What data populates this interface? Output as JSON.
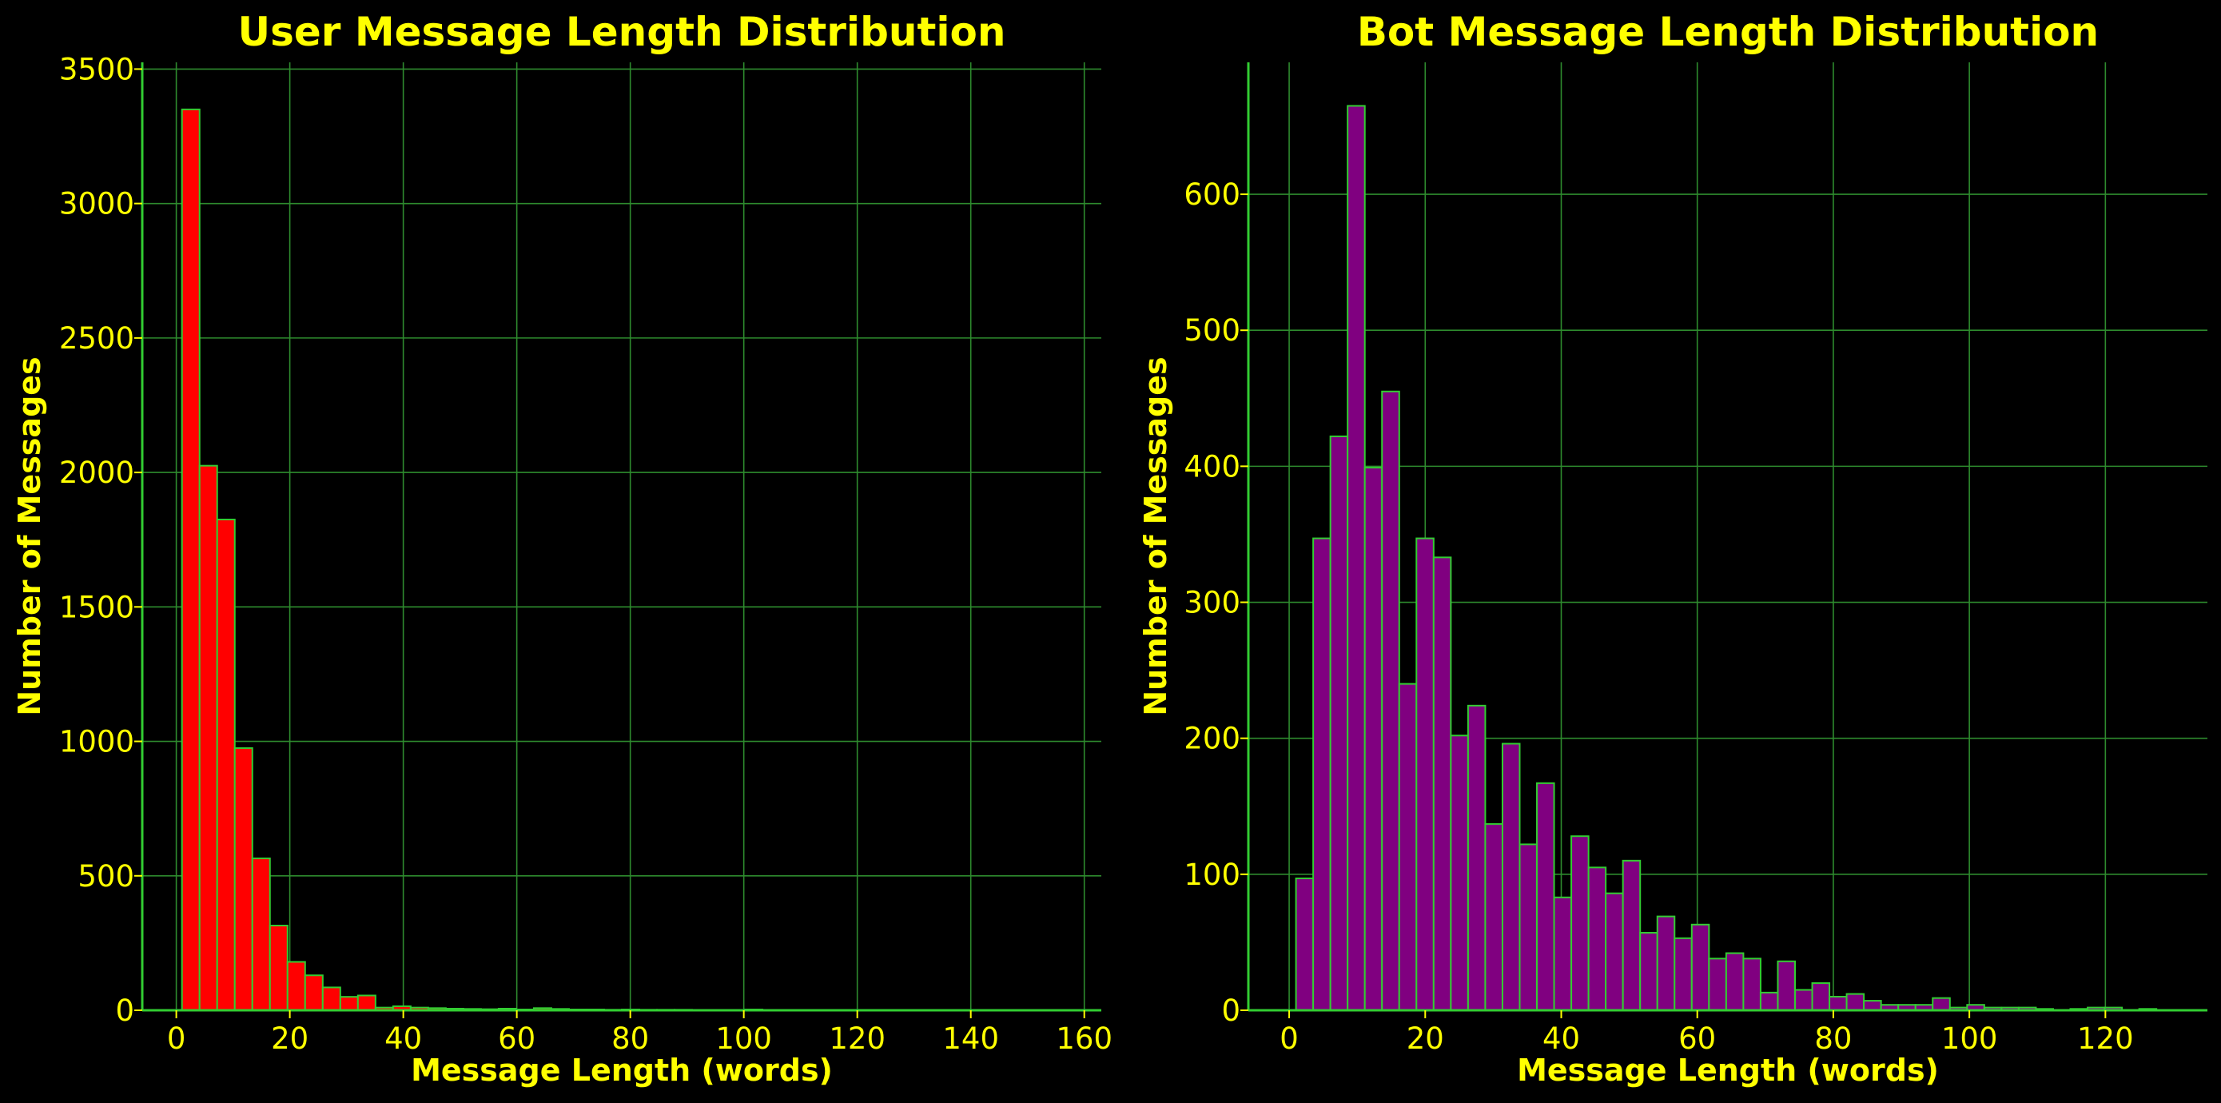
{
  "theme": {
    "background": "#000000",
    "text_color": "#FFFF00",
    "grid_color": "#2E8B2E",
    "axis_color": "#32CD32",
    "bar_edge_color": "#32CD32"
  },
  "chart_data": [
    {
      "type": "bar",
      "title": "User Message Length Distribution",
      "xlabel": "Message Length (words)",
      "ylabel": "Number of Messages",
      "bar_color": "#FF0000",
      "grid": true,
      "xlim": [
        -6,
        163
      ],
      "ylim": [
        0,
        3525
      ],
      "xticks": [
        0,
        20,
        40,
        60,
        80,
        100,
        120,
        140,
        160
      ],
      "yticks": [
        0,
        500,
        1000,
        1500,
        2000,
        2500,
        3000,
        3500
      ],
      "bin_start": 1,
      "bin_width": 3.1,
      "values": [
        3350,
        2025,
        1825,
        975,
        565,
        315,
        180,
        130,
        85,
        50,
        55,
        10,
        15,
        10,
        8,
        6,
        5,
        4,
        6,
        3,
        8,
        5,
        3,
        3,
        2,
        3,
        2,
        2,
        2,
        1,
        1,
        1,
        3,
        1,
        1,
        1,
        1,
        0,
        1,
        0,
        0,
        0,
        0,
        0,
        0,
        0,
        0,
        0,
        0,
        1
      ]
    },
    {
      "type": "bar",
      "title": "Bot Message Length Distribution",
      "xlabel": "Message Length (words)",
      "ylabel": "Number of Messages",
      "bar_color": "#800080",
      "grid": true,
      "xlim": [
        -6,
        135
      ],
      "ylim": [
        0,
        697
      ],
      "xticks": [
        0,
        20,
        40,
        60,
        80,
        100,
        120
      ],
      "yticks": [
        0,
        100,
        200,
        300,
        400,
        500,
        600
      ],
      "bin_start": 1,
      "bin_width": 2.53,
      "values": [
        97,
        347,
        422,
        665,
        399,
        455,
        240,
        347,
        333,
        202,
        224,
        137,
        196,
        122,
        167,
        83,
        128,
        105,
        86,
        110,
        57,
        69,
        53,
        63,
        38,
        42,
        38,
        13,
        36,
        15,
        20,
        10,
        12,
        7,
        4,
        4,
        4,
        9,
        2,
        4,
        2,
        2,
        2,
        1,
        0,
        1,
        2,
        2,
        0,
        1
      ]
    }
  ]
}
